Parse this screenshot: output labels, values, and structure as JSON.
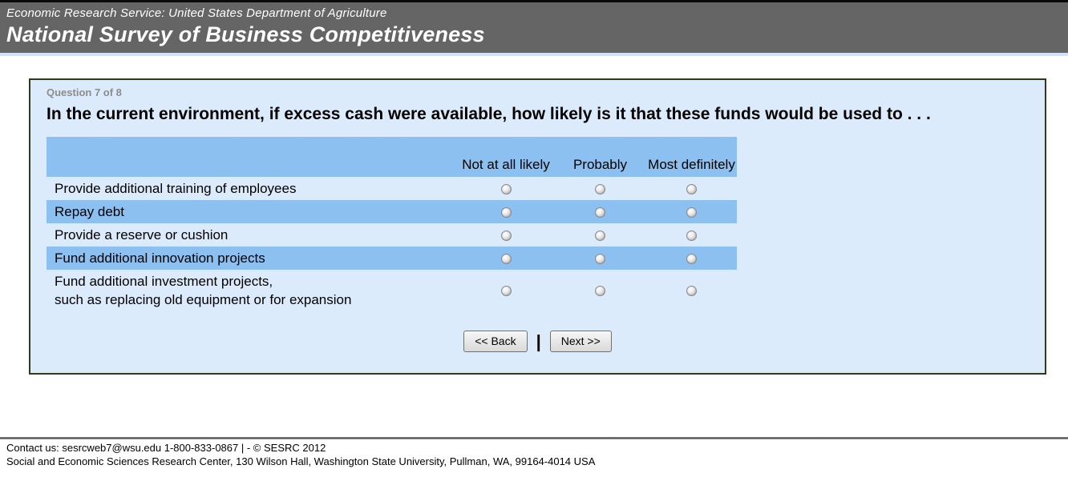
{
  "banner": {
    "agency_line": "Economic Research Service: United States Department of Agriculture",
    "survey_title": "National Survey of Business Competitiveness"
  },
  "question": {
    "progress": "Question 7 of 8",
    "text": "In the current environment, if excess cash were available, how likely is it that these funds would be used to . . ."
  },
  "table": {
    "columns": [
      "Not at all likely",
      "Probably",
      "Most definitely"
    ],
    "rows": [
      {
        "label": "Provide additional training of employees",
        "highlighted": false
      },
      {
        "label": "Repay debt",
        "highlighted": true
      },
      {
        "label": "Provide a reserve or cushion",
        "highlighted": false
      },
      {
        "label": "Fund additional innovation projects",
        "highlighted": true
      },
      {
        "label": "Fund additional investment projects,\nsuch as replacing old equipment or for expansion",
        "highlighted": false
      }
    ],
    "selection": "none"
  },
  "buttons": {
    "back_label": "<< Back",
    "separator": "|",
    "next_label": "Next >>"
  },
  "footer": {
    "line1": "Contact us: sesrcweb7@wsu.edu 1-800-833-0867 | - © SESRC 2012",
    "line2": "Social and Economic Sciences Research Center, 130 Wilson Hall, Washington State University, Pullman, WA, 99164-4014 USA"
  },
  "colors": {
    "header_gray": "#656565",
    "panel_bg": "#dcebfc",
    "stripe_blue": "#8bc0f0",
    "panel_border": "#2f3a16"
  }
}
